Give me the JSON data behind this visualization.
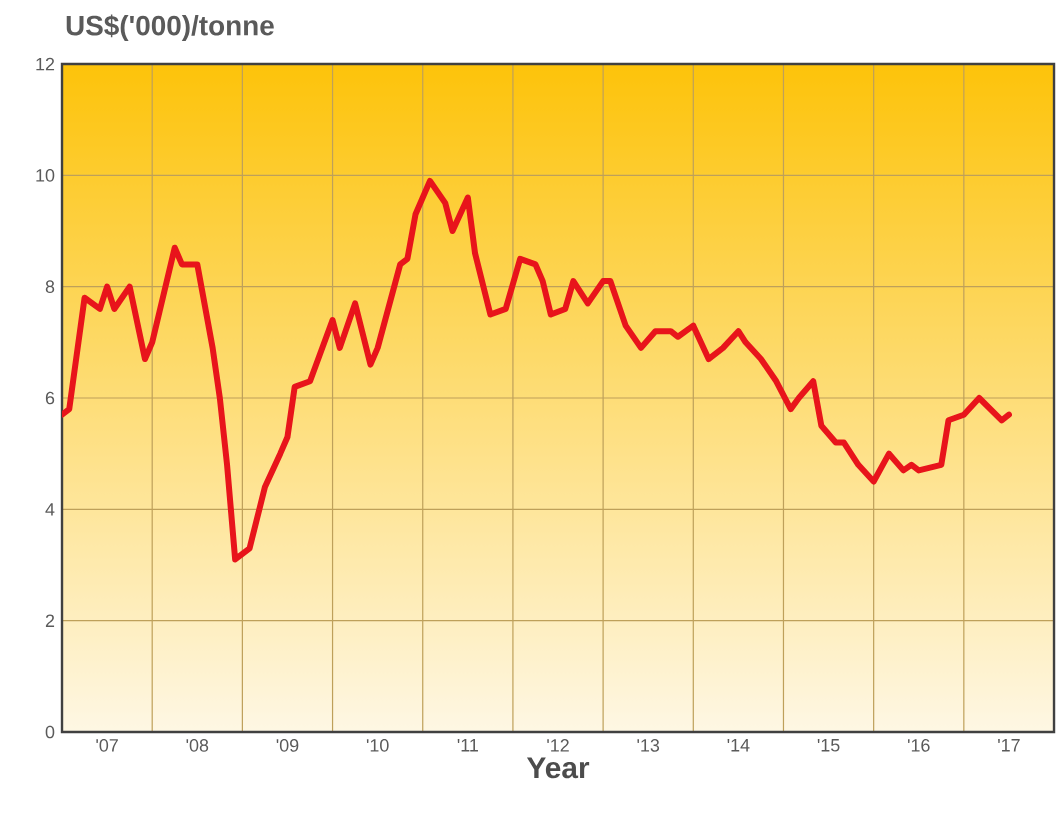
{
  "chart_data": {
    "type": "line",
    "title": "US$('000)/tonne",
    "xlabel": "Year",
    "x": [
      "2007-01",
      "2007-02",
      "2007-04",
      "2007-06",
      "2007-07",
      "2007-08",
      "2007-10",
      "2007-12",
      "2008-01",
      "2008-04",
      "2008-05",
      "2008-07",
      "2008-09",
      "2008-10",
      "2008-11",
      "2008-12",
      "2009-02",
      "2009-04",
      "2009-06",
      "2009-07",
      "2009-08",
      "2009-10",
      "2010-01",
      "2010-02",
      "2010-04",
      "2010-06",
      "2010-07",
      "2010-10",
      "2010-11",
      "2010-12",
      "2011-02",
      "2011-04",
      "2011-05",
      "2011-07",
      "2011-08",
      "2011-10",
      "2011-12",
      "2012-02",
      "2012-04",
      "2012-05",
      "2012-06",
      "2012-08",
      "2012-09",
      "2012-11",
      "2013-01",
      "2013-02",
      "2013-04",
      "2013-06",
      "2013-08",
      "2013-10",
      "2013-11",
      "2014-01",
      "2014-03",
      "2014-05",
      "2014-07",
      "2014-08",
      "2014-10",
      "2014-12",
      "2015-02",
      "2015-03",
      "2015-05",
      "2015-06",
      "2015-08",
      "2015-09",
      "2015-11",
      "2016-01",
      "2016-03",
      "2016-05",
      "2016-06",
      "2016-07",
      "2016-10",
      "2016-11",
      "2017-01",
      "2017-03",
      "2017-06",
      "2017-07"
    ],
    "series": [
      {
        "color": "#e8141b",
        "values": [
          5.7,
          5.8,
          7.8,
          7.6,
          8.0,
          7.6,
          8.0,
          6.7,
          7.0,
          8.7,
          8.4,
          8.4,
          6.9,
          6.0,
          4.8,
          3.1,
          3.3,
          4.4,
          5.0,
          5.3,
          6.2,
          6.3,
          7.4,
          6.9,
          7.7,
          6.6,
          6.9,
          8.4,
          8.5,
          9.3,
          9.9,
          9.5,
          9.0,
          9.6,
          8.6,
          7.5,
          7.6,
          8.5,
          8.4,
          8.1,
          7.5,
          7.6,
          8.1,
          7.7,
          8.1,
          8.1,
          7.3,
          6.9,
          7.2,
          7.2,
          7.1,
          7.3,
          6.7,
          6.9,
          7.2,
          7.0,
          6.7,
          6.3,
          5.8,
          6.0,
          6.3,
          5.5,
          5.2,
          5.2,
          4.8,
          4.5,
          5.0,
          4.7,
          4.8,
          4.7,
          4.8,
          5.6,
          5.7,
          6.0,
          5.6,
          5.7
        ]
      }
    ],
    "xlim": [
      "2007-01",
      "2018-01"
    ],
    "ylim": [
      0,
      12
    ],
    "yticks": [
      0,
      2,
      4,
      6,
      8,
      10,
      12
    ],
    "xticks": [
      {
        "value": "2008-01",
        "label": null
      },
      {
        "value": "2009-01",
        "label": null
      },
      {
        "value": "2010-01",
        "label": null
      },
      {
        "value": "2011-01",
        "label": null
      },
      {
        "value": "2012-01",
        "label": null
      },
      {
        "value": "2013-01",
        "label": null
      },
      {
        "value": "2014-01",
        "label": null
      },
      {
        "value": "2015-01",
        "label": null
      },
      {
        "value": "2016-01",
        "label": null
      },
      {
        "value": "2017-01",
        "label": null
      },
      {
        "value": "2007-07",
        "label": "'07"
      },
      {
        "value": "2008-07",
        "label": "'08"
      },
      {
        "value": "2009-07",
        "label": "'09"
      },
      {
        "value": "2010-07",
        "label": "'10"
      },
      {
        "value": "2011-07",
        "label": "'11"
      },
      {
        "value": "2012-07",
        "label": "'12"
      },
      {
        "value": "2013-07",
        "label": "'13"
      },
      {
        "value": "2014-07",
        "label": "'14"
      },
      {
        "value": "2015-07",
        "label": "'15"
      },
      {
        "value": "2016-07",
        "label": "'16"
      },
      {
        "value": "2017-07",
        "label": "'17"
      }
    ],
    "grid": true,
    "marker": "none",
    "line_style": "solid"
  }
}
